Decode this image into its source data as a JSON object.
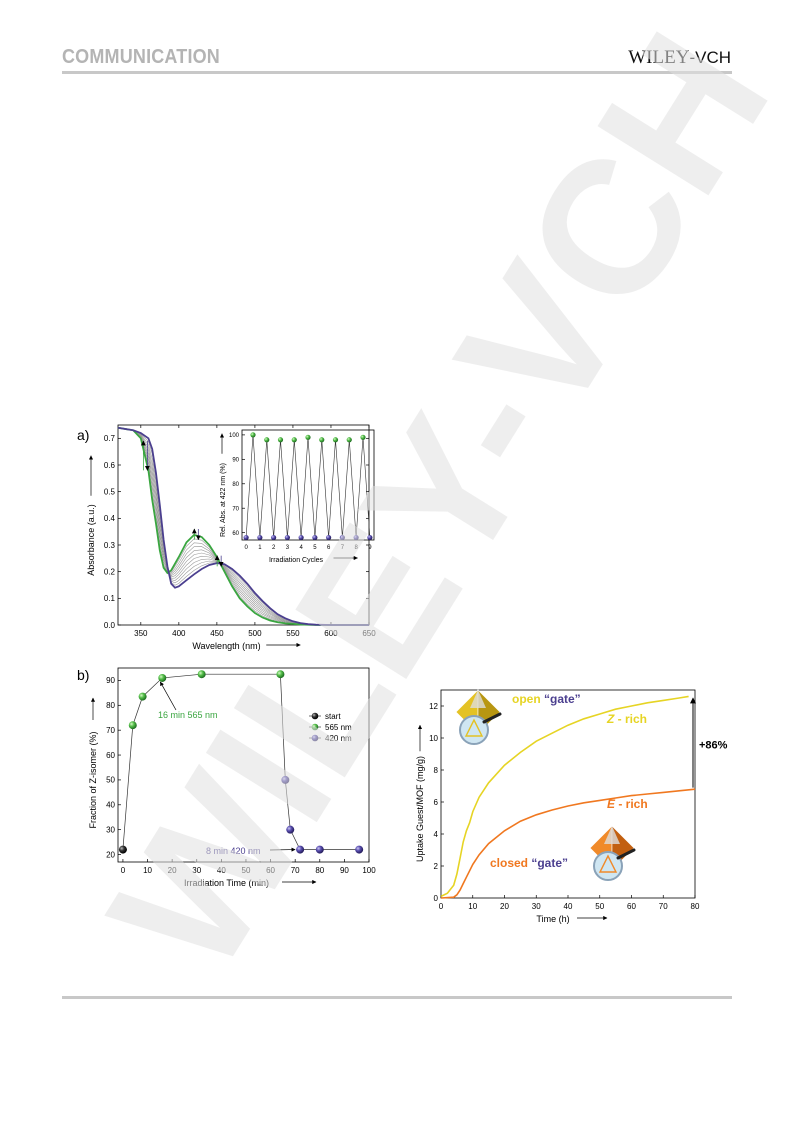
{
  "header": {
    "section": "COMMUNICATION",
    "publisher_main": "WILEY",
    "publisher_sub": "-VCH"
  },
  "watermark_text": "WILEY-VCH",
  "panel_a": {
    "label": "a)",
    "inset_label": "Rel. Abs. at 422 nm (%)"
  },
  "panel_b": {
    "label": "b)",
    "annot_565": "16 min 565 nm",
    "annot_420": "8 min 420 nm"
  },
  "panel_c": {
    "open_word": "open",
    "closed_word": "closed",
    "gate_word": "“gate”",
    "z_rich_letter": "Z",
    "z_rich_suffix": " - rich",
    "e_rich_letter": "E",
    "e_rich_suffix": " - rich",
    "increase": "+86%"
  },
  "colors": {
    "green": "#3aa640",
    "purple": "#4b3f8f",
    "yellow": "#e6d424",
    "orange": "#f07820",
    "header_gray": "#b4b4b4"
  },
  "chart_data": [
    {
      "id": "a-main",
      "type": "line",
      "xlabel": "Wavelength (nm)",
      "ylabel": "Absorbance (a.u.)",
      "xlim": [
        320,
        650
      ],
      "ylim": [
        0.0,
        0.75
      ],
      "xticks": [
        350,
        400,
        450,
        500,
        550,
        600,
        650
      ],
      "yticks": [
        0.0,
        0.1,
        0.2,
        0.3,
        0.4,
        0.5,
        0.6,
        0.7
      ],
      "series": [
        {
          "color": "#3aa640",
          "x": [
            320,
            340,
            350,
            360,
            365,
            370,
            375,
            380,
            385,
            390,
            400,
            410,
            420,
            430,
            440,
            450,
            460,
            470,
            480,
            490,
            500,
            510,
            520,
            530,
            540,
            550,
            560,
            570,
            580,
            600,
            650
          ],
          "y": [
            0.74,
            0.73,
            0.7,
            0.58,
            0.47,
            0.38,
            0.28,
            0.215,
            0.195,
            0.205,
            0.255,
            0.31,
            0.338,
            0.33,
            0.3,
            0.255,
            0.2,
            0.145,
            0.1,
            0.07,
            0.045,
            0.028,
            0.017,
            0.01,
            0.006,
            0.004,
            0.002,
            0.001,
            0,
            0,
            0
          ]
        },
        {
          "color": "#4b3f8f",
          "x": [
            320,
            340,
            350,
            360,
            365,
            370,
            375,
            380,
            385,
            390,
            395,
            400,
            410,
            420,
            430,
            440,
            450,
            460,
            470,
            480,
            490,
            500,
            510,
            520,
            530,
            540,
            550,
            560,
            570,
            580,
            600,
            650
          ],
          "y": [
            0.74,
            0.73,
            0.72,
            0.7,
            0.66,
            0.57,
            0.45,
            0.32,
            0.22,
            0.155,
            0.14,
            0.145,
            0.168,
            0.19,
            0.21,
            0.225,
            0.232,
            0.228,
            0.21,
            0.185,
            0.155,
            0.12,
            0.09,
            0.063,
            0.04,
            0.025,
            0.014,
            0.007,
            0.003,
            0.001,
            0,
            0
          ]
        }
      ],
      "inset": {
        "type": "scatter",
        "xlabel": "Irradiation Cycles",
        "ylabel": "Rel. Abs. at 422 nm (%)",
        "xlim": [
          -0.3,
          9.3
        ],
        "ylim": [
          57,
          102
        ],
        "xticks": [
          0,
          1,
          2,
          3,
          4,
          5,
          6,
          7,
          8,
          9
        ],
        "yticks": [
          60,
          70,
          80,
          90,
          100
        ],
        "series": [
          {
            "name": "green",
            "x": [
              0.5,
              1.5,
              2.5,
              3.5,
              4.5,
              5.5,
              6.5,
              7.5,
              8.5
            ],
            "y": [
              100,
              98,
              98,
              98,
              99,
              98,
              98,
              98,
              99
            ]
          },
          {
            "name": "purple",
            "x": [
              0,
              1,
              2,
              3,
              4,
              5,
              6,
              7,
              8,
              9
            ],
            "y": [
              58,
              58,
              58,
              58,
              58,
              58,
              58,
              58,
              58,
              58
            ]
          }
        ]
      }
    },
    {
      "id": "b",
      "type": "scatter",
      "xlabel": "Irradiation Time (min)",
      "ylabel": "Fraction of Z-isomer (%)",
      "xlim": [
        -2,
        100
      ],
      "ylim": [
        17,
        95
      ],
      "xticks": [
        0,
        10,
        20,
        30,
        40,
        50,
        60,
        70,
        80,
        90,
        100
      ],
      "yticks": [
        20,
        30,
        40,
        50,
        60,
        70,
        80,
        90
      ],
      "legend": "right",
      "series": [
        {
          "name": "start",
          "x": [
            0
          ],
          "y": [
            22
          ]
        },
        {
          "name": "565 nm",
          "x": [
            4,
            8,
            16,
            32,
            64
          ],
          "y": [
            72,
            83.5,
            91,
            92.5,
            92.5
          ]
        },
        {
          "name": "420 nm",
          "x": [
            66,
            68,
            72,
            80,
            96
          ],
          "y": [
            50,
            30,
            22,
            22,
            22
          ]
        }
      ]
    },
    {
      "id": "c",
      "type": "line",
      "xlabel": "Time (h)",
      "ylabel": "Uptake Guest/MOF (mg/g)",
      "xlim": [
        0,
        80
      ],
      "ylim": [
        0,
        13
      ],
      "xticks": [
        0,
        10,
        20,
        30,
        40,
        50,
        60,
        70,
        80
      ],
      "yticks": [
        0,
        2,
        4,
        6,
        8,
        10,
        12
      ],
      "series": [
        {
          "color": "#e6d424",
          "x": [
            0,
            2,
            4,
            5,
            6,
            7,
            8,
            9,
            10,
            12,
            15,
            20,
            25,
            30,
            35,
            40,
            45,
            50,
            55,
            60,
            65,
            70,
            75,
            78
          ],
          "y": [
            0.1,
            0.3,
            0.8,
            1.5,
            2.5,
            3.5,
            4.2,
            4.7,
            5.4,
            6.3,
            7.2,
            8.3,
            9.1,
            9.8,
            10.3,
            10.8,
            11.2,
            11.5,
            11.8,
            12.0,
            12.2,
            12.35,
            12.5,
            12.6
          ]
        },
        {
          "color": "#f07820",
          "x": [
            0,
            4,
            5,
            6,
            7,
            8,
            9,
            10,
            12,
            15,
            20,
            25,
            30,
            35,
            40,
            45,
            50,
            55,
            60,
            65,
            70,
            75,
            80
          ],
          "y": [
            0,
            0.05,
            0.2,
            0.5,
            0.9,
            1.3,
            1.7,
            2.1,
            2.7,
            3.4,
            4.2,
            4.8,
            5.2,
            5.5,
            5.75,
            5.95,
            6.1,
            6.25,
            6.4,
            6.5,
            6.6,
            6.7,
            6.8
          ]
        }
      ]
    }
  ]
}
